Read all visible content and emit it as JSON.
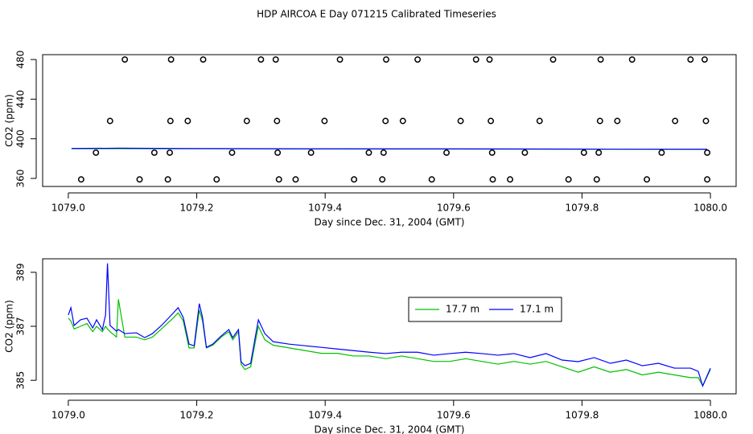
{
  "title": "HDP AIRCOA E  Day 071215  Calibrated Timeseries",
  "chart_data": [
    {
      "type": "scatter",
      "xlabel": "Day since Dec. 31, 2004 (GMT)",
      "ylabel": "CO2 (ppm)",
      "xlim": [
        1078.96,
        1080.04
      ],
      "ylim": [
        351.9,
        484.9
      ],
      "xticks": [
        {
          "value": 1079.0,
          "label": "1079.0"
        },
        {
          "value": 1079.2,
          "label": "1079.2"
        },
        {
          "value": 1079.4,
          "label": "1079.4"
        },
        {
          "value": 1079.6,
          "label": "1079.6"
        },
        {
          "value": 1079.8,
          "label": "1079.8"
        },
        {
          "value": 1080.0,
          "label": "1080.0"
        }
      ],
      "yticks": [
        360,
        400,
        440,
        480
      ],
      "marker_color": "#000000",
      "x": [
        1079.088,
        1079.16,
        1079.21,
        1079.3,
        1079.323,
        1079.423,
        1079.495,
        1079.544,
        1079.635,
        1079.656,
        1079.755,
        1079.829,
        1079.878,
        1079.969,
        1079.991,
        1079.065,
        1079.159,
        1079.186,
        1079.278,
        1079.325,
        1079.399,
        1079.494,
        1079.521,
        1079.611,
        1079.658,
        1079.734,
        1079.828,
        1079.855,
        1079.945,
        1079.993,
        1079.043,
        1079.134,
        1079.158,
        1079.255,
        1079.326,
        1079.378,
        1079.468,
        1079.491,
        1079.589,
        1079.66,
        1079.711,
        1079.803,
        1079.826,
        1079.924,
        1079.995,
        1079.02,
        1079.111,
        1079.155,
        1079.231,
        1079.328,
        1079.354,
        1079.445,
        1079.489,
        1079.566,
        1079.661,
        1079.688,
        1079.779,
        1079.823,
        1079.901,
        1079.995
      ],
      "values": [
        480,
        480,
        480,
        480,
        480,
        480,
        480,
        480,
        480,
        480,
        480,
        480,
        480,
        480,
        480,
        418,
        418,
        418,
        418,
        418,
        418,
        418,
        418,
        418,
        418,
        418,
        418,
        418,
        418,
        418,
        386,
        386,
        386,
        386,
        386,
        386,
        386,
        386,
        386,
        386,
        386,
        386,
        386,
        386,
        386,
        359,
        359,
        359,
        359,
        359,
        359,
        359,
        359,
        359,
        359,
        359,
        359,
        359,
        359,
        359
      ],
      "lines": [
        {
          "color": "#00c000",
          "x": [
            1079.005,
            1079.08,
            1079.2,
            1079.4,
            1079.6,
            1079.8,
            1079.995
          ],
          "values": [
            390,
            390,
            390,
            389.8,
            389.7,
            389.5,
            389.4
          ]
        },
        {
          "color": "#0000ff",
          "x": [
            1079.005,
            1079.08,
            1079.2,
            1079.4,
            1079.6,
            1079.8,
            1079.995
          ],
          "values": [
            390.2,
            390.5,
            390.1,
            389.9,
            389.8,
            389.6,
            389.5
          ]
        }
      ]
    },
    {
      "type": "line",
      "xlabel": "Day since Dec. 31, 2004 (GMT)",
      "ylabel": "CO2 (ppm)",
      "xlim": [
        1078.96,
        1080.04
      ],
      "ylim": [
        384.5,
        389.5
      ],
      "xticks": [
        {
          "value": 1079.0,
          "label": "1079.0"
        },
        {
          "value": 1079.2,
          "label": "1079.2"
        },
        {
          "value": 1079.4,
          "label": "1079.4"
        },
        {
          "value": 1079.6,
          "label": "1079.6"
        },
        {
          "value": 1079.8,
          "label": "1079.8"
        },
        {
          "value": 1080.0,
          "label": "1080.0"
        }
      ],
      "yticks": [
        385,
        387,
        389
      ],
      "x": [
        1079.0,
        1079.004,
        1079.009,
        1079.019,
        1079.029,
        1079.038,
        1079.044,
        1079.053,
        1079.058,
        1079.061,
        1079.065,
        1079.075,
        1079.078,
        1079.088,
        1079.106,
        1079.119,
        1079.131,
        1079.145,
        1079.163,
        1079.171,
        1079.179,
        1079.188,
        1079.196,
        1079.204,
        1079.209,
        1079.215,
        1079.225,
        1079.238,
        1079.25,
        1079.256,
        1079.265,
        1079.269,
        1079.275,
        1079.284,
        1079.291,
        1079.296,
        1079.306,
        1079.319,
        1079.344,
        1079.369,
        1079.394,
        1079.419,
        1079.444,
        1079.469,
        1079.494,
        1079.519,
        1079.544,
        1079.569,
        1079.594,
        1079.619,
        1079.644,
        1079.669,
        1079.694,
        1079.719,
        1079.744,
        1079.769,
        1079.794,
        1079.819,
        1079.844,
        1079.869,
        1079.894,
        1079.919,
        1079.944,
        1079.969,
        1079.981,
        1079.988,
        1080.0
      ],
      "series": [
        {
          "name": "17.7 m",
          "color": "#00c000",
          "values": [
            387.3,
            387.2,
            386.9,
            387.0,
            387.1,
            386.8,
            387.0,
            386.8,
            387.0,
            386.9,
            386.8,
            386.6,
            388.0,
            386.6,
            386.6,
            386.5,
            386.6,
            386.9,
            387.3,
            387.5,
            387.2,
            386.2,
            386.2,
            387.6,
            387.2,
            386.2,
            386.3,
            386.6,
            386.8,
            386.5,
            386.8,
            385.6,
            385.4,
            385.5,
            386.4,
            387.0,
            386.5,
            386.3,
            386.2,
            386.1,
            386.0,
            386.0,
            385.9,
            385.9,
            385.8,
            385.9,
            385.8,
            385.7,
            385.7,
            385.8,
            385.7,
            385.6,
            385.7,
            385.6,
            385.7,
            385.5,
            385.3,
            385.5,
            385.3,
            385.4,
            385.2,
            385.3,
            385.2,
            385.1,
            385.1,
            384.8,
            385.4
          ]
        },
        {
          "name": "17.1 m",
          "color": "#0000ff",
          "values": [
            387.42,
            387.69,
            387.03,
            387.24,
            387.3,
            386.94,
            387.24,
            386.88,
            387.42,
            389.33,
            387.03,
            386.82,
            386.88,
            386.73,
            386.76,
            386.58,
            386.73,
            387.03,
            387.48,
            387.69,
            387.33,
            386.34,
            386.28,
            387.84,
            387.33,
            386.22,
            386.34,
            386.64,
            386.88,
            386.58,
            386.88,
            385.69,
            385.54,
            385.63,
            386.58,
            387.24,
            386.73,
            386.43,
            386.34,
            386.28,
            386.22,
            386.16,
            386.1,
            386.04,
            385.99,
            386.04,
            386.04,
            385.93,
            385.99,
            386.04,
            385.99,
            385.93,
            385.99,
            385.84,
            385.99,
            385.75,
            385.69,
            385.84,
            385.63,
            385.75,
            385.54,
            385.63,
            385.45,
            385.45,
            385.33,
            384.79,
            385.45
          ]
        }
      ]
    }
  ]
}
